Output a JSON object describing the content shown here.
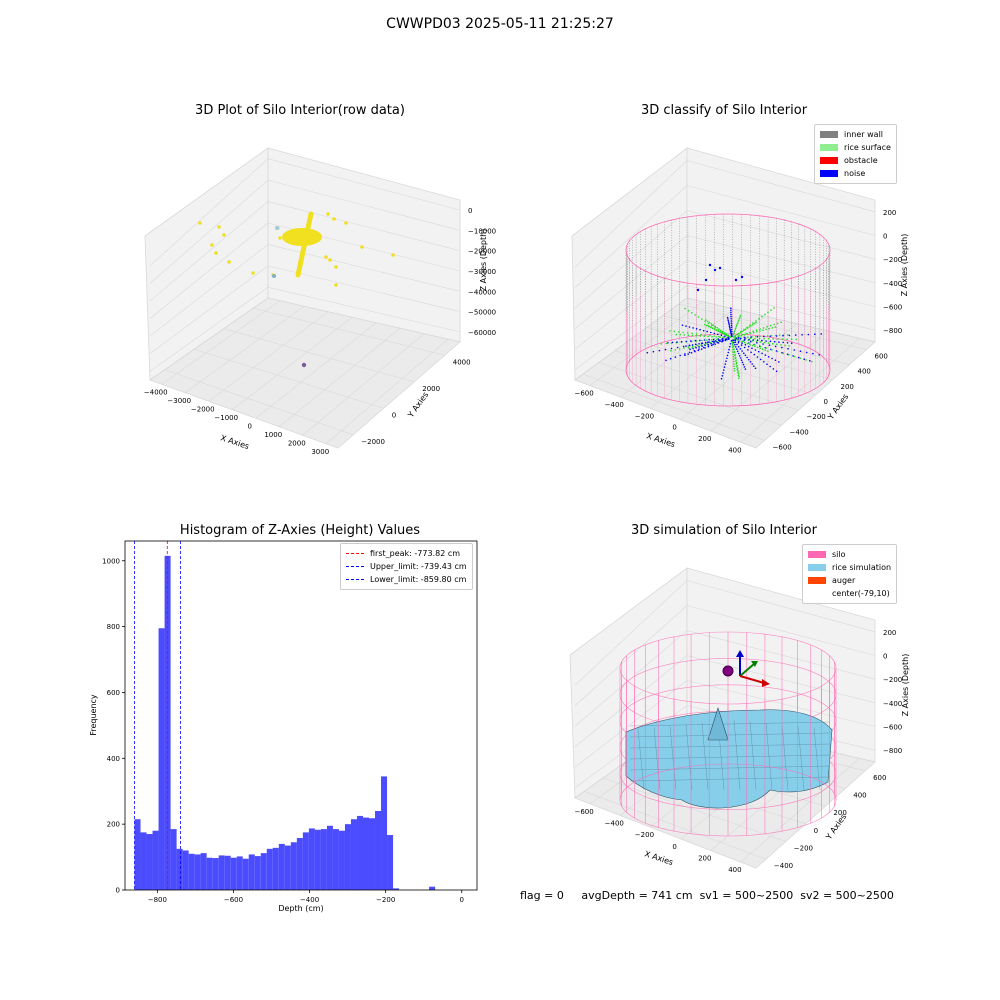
{
  "figure_title": "CWWPD03 2025-05-11 21:25:27",
  "status_line": {
    "flag": "flag = 0",
    "avg_depth": "avgDepth = 741 cm",
    "sv1": "sv1 = 500~2500",
    "sv2": "sv2 = 500~2500"
  },
  "colors": {
    "inner_wall": "#808080",
    "rice_surface": "#90ee90",
    "obstacle": "#ff0000",
    "noise": "#0000ff",
    "silo": "#ff69b4",
    "rice_simulation": "#87ceeb",
    "auger": "#ff4500",
    "hist_bar": "#4c4cff",
    "scatter_point": "#f0e020"
  },
  "chart_data": [
    {
      "type": "scatter",
      "title": "3D Plot of Silo Interior(row data)",
      "xlabel": "X Axies",
      "ylabel": "Y Axies",
      "zlabel": "Z Axies (Depth)",
      "x_ticks": [
        "−4000",
        "−3000",
        "−2000",
        "−1000",
        "0",
        "1000",
        "2000",
        "3000"
      ],
      "y_ticks": [
        "−2000",
        "0",
        "2000",
        "4000"
      ],
      "z_ticks": [
        "0",
        "−10000",
        "−20000",
        "−30000",
        "−40000",
        "−50000",
        "−60000"
      ],
      "grid": true
    },
    {
      "type": "scatter",
      "title": "3D classify of Silo Interior",
      "xlabel": "X Axies",
      "ylabel": "Y Axies",
      "zlabel": "Z Axies (Depth)",
      "x_ticks": [
        "−600",
        "−400",
        "−200",
        "0",
        "200",
        "400"
      ],
      "y_ticks": [
        "−600",
        "−400",
        "−200",
        "0",
        "200",
        "400",
        "600"
      ],
      "z_ticks": [
        "200",
        "0",
        "−200",
        "−400",
        "−600",
        "−800"
      ],
      "legend": [
        "inner wall",
        "rice surface",
        "obstacle",
        "noise"
      ],
      "legend_position": "top-right",
      "grid": true
    },
    {
      "type": "bar",
      "title": "Histogram of Z-Axies (Height) Values",
      "xlabel": "Depth (cm)",
      "ylabel": "Frequency",
      "xlim": [
        -885,
        40
      ],
      "ylim": [
        0,
        1060
      ],
      "x_ticks": [
        -800,
        -600,
        -400,
        -200,
        0
      ],
      "y_ticks": [
        0,
        200,
        400,
        600,
        800,
        1000
      ],
      "tick_labels_x": [
        "−800",
        "−600",
        "−400",
        "−200",
        "0"
      ],
      "tick_labels_y": [
        "0",
        "200",
        "400",
        "600",
        "800",
        "1000"
      ],
      "bin_start": -860,
      "bin_width": 15.8,
      "values": [
        215,
        175,
        170,
        180,
        795,
        1015,
        185,
        125,
        120,
        110,
        108,
        112,
        98,
        97,
        105,
        104,
        98,
        102,
        95,
        108,
        103,
        112,
        125,
        128,
        140,
        135,
        145,
        158,
        175,
        187,
        183,
        185,
        195,
        185,
        180,
        200,
        215,
        225,
        220,
        218,
        240,
        345,
        167,
        5,
        0,
        0,
        0,
        0,
        0,
        10
      ],
      "vlines": [
        {
          "name": "first_peak: -773.82 cm",
          "x": -773.82,
          "color": "#ff0000"
        },
        {
          "name": "Upper_limit: -739.43 cm",
          "x": -739.43,
          "color": "#0000ff"
        },
        {
          "name": "Lower_limit: -859.80 cm",
          "x": -859.8,
          "color": "#0000ff"
        }
      ],
      "legend_position": "top-right"
    },
    {
      "type": "area",
      "title": "3D simulation of Silo Interior",
      "xlabel": "X Axies",
      "ylabel": "Y Axies",
      "zlabel": "Z Axies (Depth)",
      "x_ticks": [
        "−600",
        "−400",
        "−200",
        "0",
        "200",
        "400"
      ],
      "y_ticks": [
        "−400",
        "−200",
        "0",
        "200",
        "400",
        "600"
      ],
      "z_ticks": [
        "200",
        "0",
        "−200",
        "−400",
        "−600",
        "−800"
      ],
      "legend": [
        "silo",
        "rice simulation",
        "auger",
        "center(-79,10)"
      ],
      "legend_position": "top-right",
      "grid": true
    }
  ]
}
